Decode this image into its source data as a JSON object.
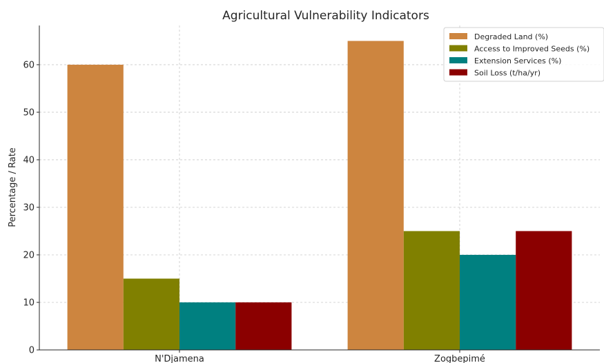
{
  "chart_data": {
    "type": "bar",
    "title": "Agricultural Vulnerability Indicators",
    "xlabel": "",
    "ylabel": "Percentage / Rate",
    "categories": [
      "N'Djamena",
      "Zogbepimé"
    ],
    "series": [
      {
        "name": "Degraded Land (%)",
        "values": [
          60,
          65
        ],
        "color": "#cd853f"
      },
      {
        "name": "Access to Improved Seeds (%)",
        "values": [
          15,
          25
        ],
        "color": "#808000"
      },
      {
        "name": "Extension Services (%)",
        "values": [
          10,
          20
        ],
        "color": "#008080"
      },
      {
        "name": "Soil Loss (t/ha/yr)",
        "values": [
          10,
          25
        ],
        "color": "#8b0000"
      }
    ],
    "ylim": [
      0,
      68.25
    ],
    "yticks": [
      0,
      10,
      20,
      30,
      40,
      50,
      60
    ],
    "grid": true,
    "legend_position": "top-right"
  }
}
